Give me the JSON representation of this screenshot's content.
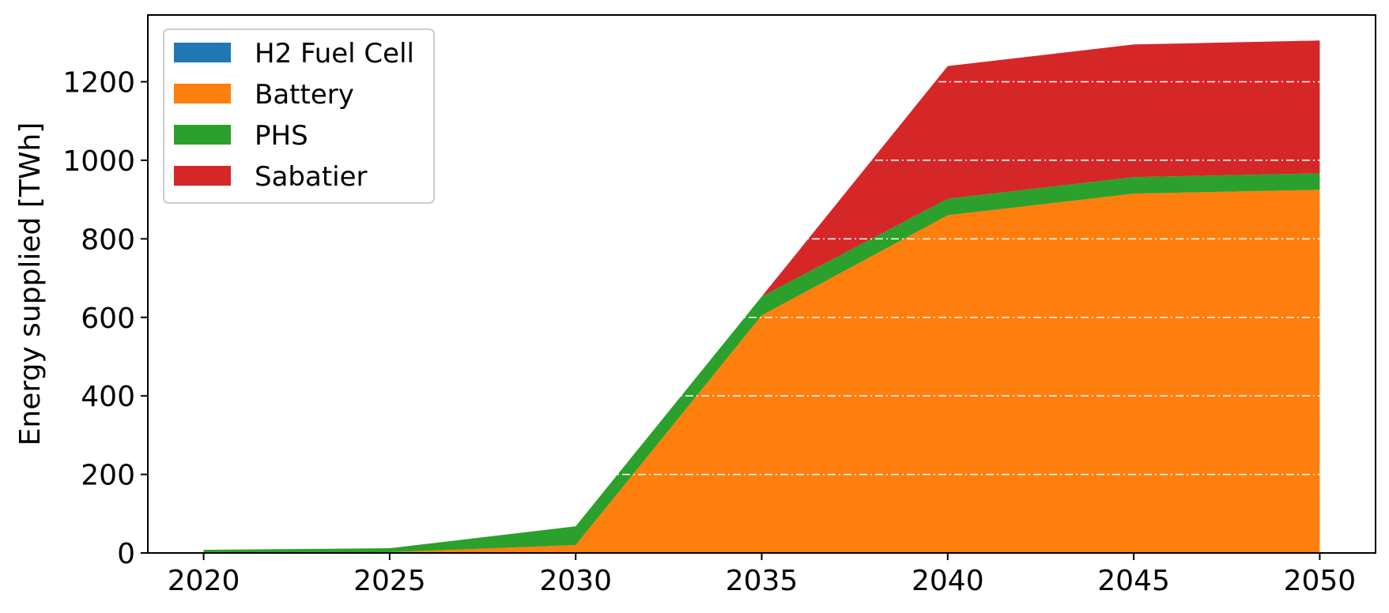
{
  "chart_data": {
    "type": "area",
    "stacked": true,
    "x": [
      2020,
      2025,
      2030,
      2035,
      2040,
      2045,
      2050
    ],
    "xticks": [
      "2020",
      "2025",
      "2030",
      "2035",
      "2040",
      "2045",
      "2050"
    ],
    "series": [
      {
        "name": "H2 Fuel Cell",
        "color": "#1f77b4",
        "values": [
          0,
          0,
          0,
          0,
          0,
          0,
          0
        ]
      },
      {
        "name": "Battery",
        "color": "#ff7f0e",
        "values": [
          0,
          2,
          20,
          605,
          860,
          915,
          925
        ]
      },
      {
        "name": "PHS",
        "color": "#2ca02c",
        "values": [
          8,
          10,
          48,
          48,
          42,
          42,
          42
        ]
      },
      {
        "name": "Sabatier",
        "color": "#d62728",
        "values": [
          0,
          0,
          0,
          0,
          338,
          338,
          338
        ]
      }
    ],
    "ylabel": "Energy supplied [TWh]",
    "xlabel": "",
    "title": "",
    "yticks": [
      "0",
      "200",
      "400",
      "600",
      "800",
      "1000",
      "1200"
    ],
    "ylim": [
      0,
      1370
    ],
    "xlim": [
      2018.5,
      2051.5
    ],
    "grid": {
      "axis": "y",
      "style": "dash-dot",
      "color": "#ffffff"
    },
    "legend": {
      "placement": "top-left"
    }
  }
}
